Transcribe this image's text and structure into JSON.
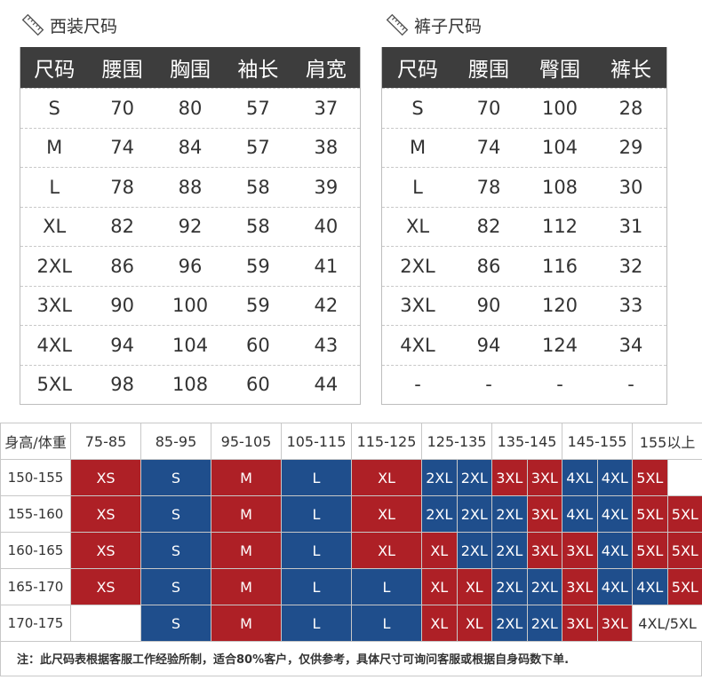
{
  "suit": {
    "title": "西装尺码",
    "headers": [
      "尺码",
      "腰围",
      "胸围",
      "袖长",
      "肩宽"
    ],
    "rows": [
      [
        "S",
        "70",
        "80",
        "57",
        "37"
      ],
      [
        "M",
        "74",
        "84",
        "57",
        "38"
      ],
      [
        "L",
        "78",
        "88",
        "58",
        "39"
      ],
      [
        "XL",
        "82",
        "92",
        "58",
        "40"
      ],
      [
        "2XL",
        "86",
        "96",
        "59",
        "41"
      ],
      [
        "3XL",
        "90",
        "100",
        "59",
        "42"
      ],
      [
        "4XL",
        "94",
        "104",
        "60",
        "43"
      ],
      [
        "5XL",
        "98",
        "108",
        "60",
        "44"
      ]
    ]
  },
  "pants": {
    "title": "裤子尺码",
    "headers": [
      "尺码",
      "腰围",
      "臀围",
      "裤长"
    ],
    "rows": [
      [
        "S",
        "70",
        "100",
        "28"
      ],
      [
        "M",
        "74",
        "104",
        "29"
      ],
      [
        "L",
        "78",
        "108",
        "30"
      ],
      [
        "XL",
        "82",
        "112",
        "31"
      ],
      [
        "2XL",
        "86",
        "116",
        "32"
      ],
      [
        "3XL",
        "90",
        "120",
        "33"
      ],
      [
        "4XL",
        "94",
        "124",
        "34"
      ],
      [
        "-",
        "-",
        "-",
        "-"
      ]
    ]
  },
  "grid": {
    "corner": "身高/体重",
    "weights": [
      "75-85",
      "85-95",
      "95-105",
      "105-115",
      "115-125",
      "125-135",
      "135-145",
      "145-155",
      "155以上"
    ],
    "heights": [
      "150-155",
      "155-160",
      "160-165",
      "165-170",
      "170-175"
    ],
    "colors": {
      "red": "#ae2026",
      "blue": "#1f4e8c"
    },
    "rows": [
      [
        [
          "XS",
          "r"
        ],
        [
          "S",
          "b"
        ],
        [
          "M",
          "r"
        ],
        [
          "L",
          "b"
        ],
        [
          "XL",
          "r"
        ],
        [
          "2XL",
          "b"
        ],
        [
          "2XL",
          "b"
        ],
        [
          "3XL",
          "r"
        ],
        [
          "3XL",
          "r"
        ],
        [
          "4XL",
          "b"
        ],
        [
          "4XL",
          "b"
        ],
        [
          "5XL",
          "r"
        ],
        [
          "",
          "w"
        ]
      ],
      [
        [
          "XS",
          "r"
        ],
        [
          "S",
          "b"
        ],
        [
          "M",
          "r"
        ],
        [
          "L",
          "b"
        ],
        [
          "XL",
          "r"
        ],
        [
          "2XL",
          "b"
        ],
        [
          "2XL",
          "b"
        ],
        [
          "2XL",
          "b"
        ],
        [
          "3XL",
          "r"
        ],
        [
          "4XL",
          "b"
        ],
        [
          "4XL",
          "b"
        ],
        [
          "5XL",
          "r"
        ],
        [
          "5XL",
          "r"
        ]
      ],
      [
        [
          "XS",
          "r"
        ],
        [
          "S",
          "b"
        ],
        [
          "M",
          "r"
        ],
        [
          "L",
          "b"
        ],
        [
          "XL",
          "r"
        ],
        [
          "XL",
          "r"
        ],
        [
          "2XL",
          "b"
        ],
        [
          "2XL",
          "b"
        ],
        [
          "3XL",
          "r"
        ],
        [
          "3XL",
          "r"
        ],
        [
          "4XL",
          "b"
        ],
        [
          "5XL",
          "r"
        ],
        [
          "5XL",
          "r"
        ]
      ],
      [
        [
          "XS",
          "r"
        ],
        [
          "S",
          "b"
        ],
        [
          "M",
          "r"
        ],
        [
          "L",
          "b"
        ],
        [
          "L",
          "b"
        ],
        [
          "XL",
          "r"
        ],
        [
          "XL",
          "r"
        ],
        [
          "2XL",
          "b"
        ],
        [
          "2XL",
          "b"
        ],
        [
          "3XL",
          "r"
        ],
        [
          "4XL",
          "b"
        ],
        [
          "4XL",
          "b"
        ],
        [
          "5XL",
          "r"
        ]
      ],
      [
        [
          "",
          "w"
        ],
        [
          "S",
          "b"
        ],
        [
          "M",
          "r"
        ],
        [
          "L",
          "b"
        ],
        [
          "L",
          "b"
        ],
        [
          "XL",
          "r"
        ],
        [
          "XL",
          "r"
        ],
        [
          "2XL",
          "b"
        ],
        [
          "2XL",
          "b"
        ],
        [
          "3XL",
          "r"
        ],
        [
          "3XL",
          "r"
        ],
        [
          "4XL/5XL",
          "w"
        ]
      ]
    ]
  },
  "note": "注：此尺码表根据客服工作经验所制，适合80%客户，仅供参考，具体尺寸可询问客服或根据自身码数下单."
}
